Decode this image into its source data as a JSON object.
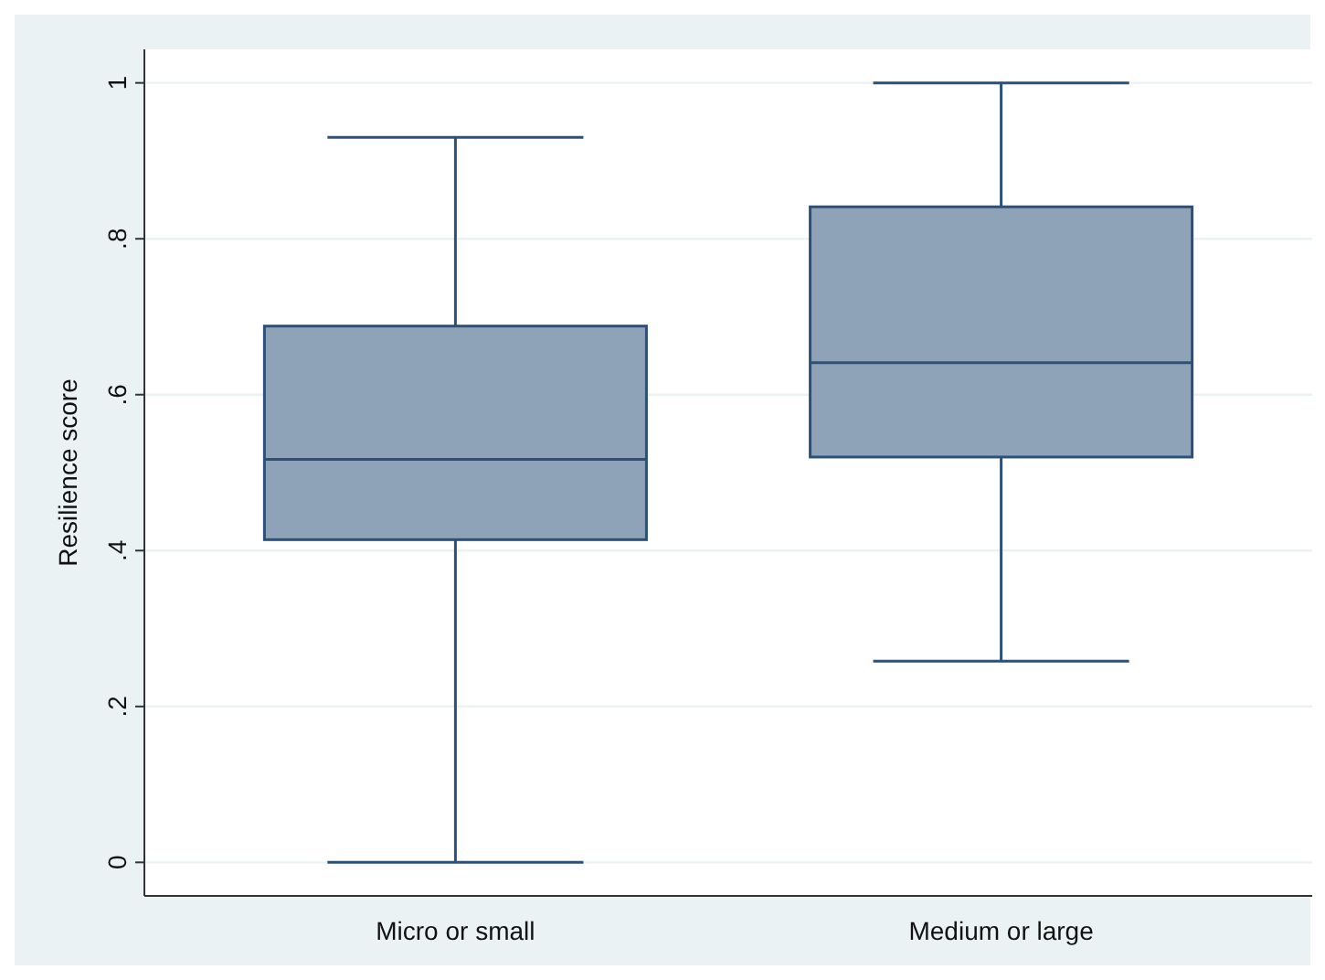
{
  "chart_data": {
    "type": "box",
    "ylabel": "Resilience score",
    "categories": [
      "Micro or small",
      "Medium or large"
    ],
    "boxes": [
      {
        "low": 0,
        "q1": 0.414,
        "median": 0.517,
        "q3": 0.688,
        "high": 0.93
      },
      {
        "low": 0.258,
        "q1": 0.52,
        "median": 0.641,
        "q3": 0.841,
        "high": 1
      }
    ],
    "color": "#8ea3b7",
    "ylim": [
      -0.043,
      1.043
    ],
    "yticks": [
      {
        "value": 0,
        "label": "0"
      },
      {
        "value": 0.2,
        "label": ".2"
      },
      {
        "value": 0.4,
        "label": ".4"
      },
      {
        "value": 0.6,
        "label": ".6"
      },
      {
        "value": 0.8,
        "label": ".8"
      },
      {
        "value": 1,
        "label": "1"
      }
    ],
    "grid": "y"
  }
}
